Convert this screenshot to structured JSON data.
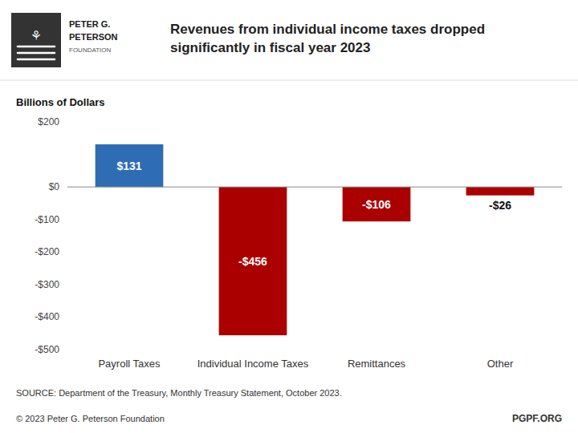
{
  "chart_data": {
    "type": "bar",
    "title": "Revenues from individual income taxes dropped\nsignificantly in fiscal year 2023",
    "ylabel": "Billions of Dollars",
    "categories": [
      "Payroll Taxes",
      "Individual Income Taxes",
      "Remittances",
      "Other"
    ],
    "values": [
      131,
      -456,
      -106,
      -26
    ],
    "value_labels": [
      "$131",
      "-$456",
      "-$106",
      "-$26"
    ],
    "data_labels": true,
    "colors": [
      "#2E6DB4",
      "#AA0000",
      "#AA0000",
      "#AA0000"
    ],
    "ylim": [
      -500,
      200
    ],
    "yticks": [
      {
        "value": 200,
        "label": "$200"
      },
      {
        "value": 0,
        "label": "$0"
      },
      {
        "value": -100,
        "label": "-$100"
      },
      {
        "value": -200,
        "label": "-$200"
      },
      {
        "value": -300,
        "label": "-$300"
      },
      {
        "value": -400,
        "label": "-$400"
      },
      {
        "value": -500,
        "label": "-$500"
      }
    ],
    "grid": false,
    "annotations": [
      "SOURCE: Department of the Treasury, Monthly Treasury Statement, October 2023.",
      "© 2023 Peter G. Peterson Foundation",
      "PGPF.ORG",
      "PETER G.",
      "PETERSON",
      "FOUNDATION",
      "⚘"
    ]
  }
}
